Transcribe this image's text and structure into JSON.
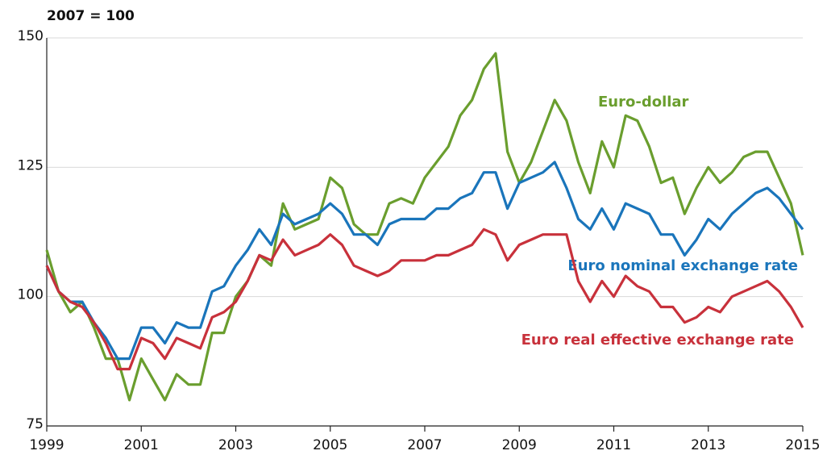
{
  "chart_data": {
    "type": "line",
    "subtitle": "2007 = 100",
    "x": [
      1999,
      1999.25,
      1999.5,
      1999.75,
      2000,
      2000.25,
      2000.5,
      2000.75,
      2001,
      2001.25,
      2001.5,
      2001.75,
      2002,
      2002.25,
      2002.5,
      2002.75,
      2003,
      2003.25,
      2003.5,
      2003.75,
      2004,
      2004.25,
      2004.5,
      2004.75,
      2005,
      2005.25,
      2005.5,
      2005.75,
      2006,
      2006.25,
      2006.5,
      2006.75,
      2007,
      2007.25,
      2007.5,
      2007.75,
      2008,
      2008.25,
      2008.5,
      2008.75,
      2009,
      2009.25,
      2009.5,
      2009.75,
      2010,
      2010.25,
      2010.5,
      2010.75,
      2011,
      2011.25,
      2011.5,
      2011.75,
      2012,
      2012.25,
      2012.5,
      2012.75,
      2013,
      2013.25,
      2013.5,
      2013.75,
      2014,
      2014.25,
      2014.5,
      2014.75,
      2015
    ],
    "series": [
      {
        "name": "Euro-dollar",
        "color": "#6a9e2e",
        "values": [
          109,
          101,
          97,
          99,
          94,
          88,
          88,
          80,
          88,
          84,
          80,
          85,
          83,
          83,
          93,
          93,
          100,
          103,
          108,
          106,
          118,
          113,
          114,
          115,
          123,
          121,
          114,
          112,
          112,
          118,
          119,
          118,
          123,
          126,
          129,
          135,
          138,
          144,
          147,
          128,
          122,
          126,
          132,
          138,
          134,
          126,
          120,
          130,
          125,
          135,
          134,
          129,
          122,
          123,
          116,
          121,
          125,
          122,
          124,
          127,
          128,
          128,
          123,
          118,
          108
        ]
      },
      {
        "name": "Euro nominal exchange rate",
        "color": "#1a75bb",
        "values": [
          106,
          101,
          99,
          99,
          95,
          92,
          88,
          88,
          94,
          94,
          91,
          95,
          94,
          94,
          101,
          102,
          106,
          109,
          113,
          110,
          116,
          114,
          115,
          116,
          118,
          116,
          112,
          112,
          110,
          114,
          115,
          115,
          115,
          117,
          117,
          119,
          120,
          124,
          124,
          117,
          122,
          123,
          124,
          126,
          121,
          115,
          113,
          117,
          113,
          118,
          117,
          116,
          112,
          112,
          108,
          111,
          115,
          113,
          116,
          118,
          120,
          121,
          119,
          116,
          113
        ]
      },
      {
        "name": "Euro real effective exchange rate",
        "color": "#c8313b",
        "values": [
          106,
          101,
          99,
          98,
          95,
          91,
          86,
          86,
          92,
          91,
          88,
          92,
          91,
          90,
          96,
          97,
          99,
          103,
          108,
          107,
          111,
          108,
          109,
          110,
          112,
          110,
          106,
          105,
          104,
          105,
          107,
          107,
          107,
          108,
          108,
          109,
          110,
          113,
          112,
          107,
          110,
          111,
          112,
          112,
          112,
          103,
          99,
          103,
          100,
          104,
          102,
          101,
          98,
          98,
          95,
          96,
          98,
          97,
          100,
          101,
          102,
          103,
          101,
          98,
          94
        ]
      }
    ],
    "xlim": [
      1999,
      2015
    ],
    "xticks": [
      1999,
      2001,
      2003,
      2005,
      2007,
      2009,
      2011,
      2013,
      2015
    ],
    "ylim": [
      75,
      150
    ],
    "yticks": [
      75,
      100,
      125,
      150
    ],
    "grid": true
  }
}
